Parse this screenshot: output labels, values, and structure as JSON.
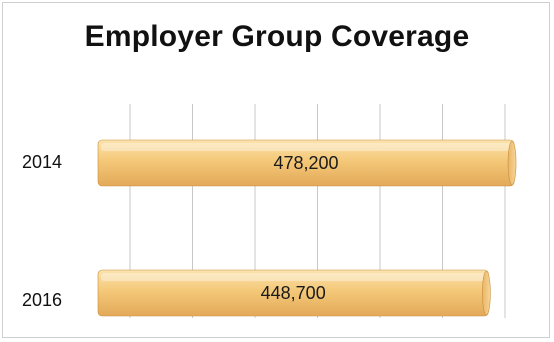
{
  "chart_data": {
    "type": "bar",
    "orientation": "horizontal",
    "title": "Employer Group Coverage",
    "categories": [
      "2014",
      "2016"
    ],
    "values": [
      478200,
      448700
    ],
    "data_labels": [
      "478,200",
      "448,700"
    ],
    "xlim": [
      0,
      500000
    ],
    "x_grid": true,
    "legend": "none",
    "colors": {
      "bar_top": "#fbe3ad",
      "bar_mid": "#f4c878",
      "bar_bottom": "#e2a959",
      "bar_edge": "#c98f3f",
      "gridline": "#c8c8c8"
    }
  }
}
